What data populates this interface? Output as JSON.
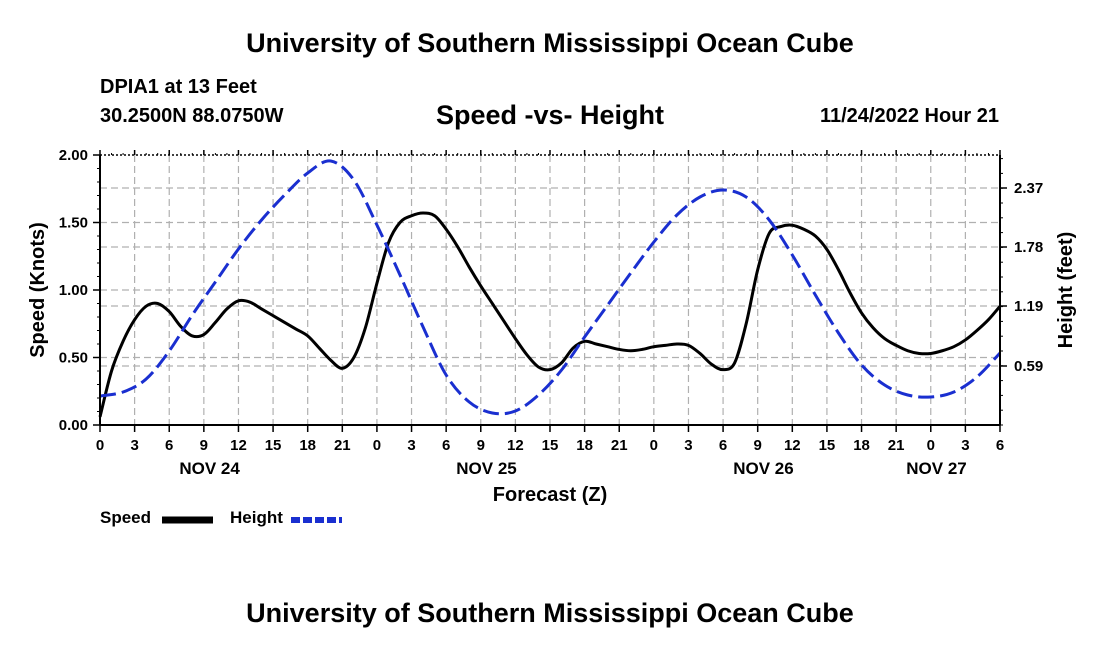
{
  "header": {
    "title": "University of Southern Mississippi Ocean Cube",
    "station": "DPIA1 at 13 Feet",
    "coords": "30.2500N  88.0750W",
    "subtitle": "Speed -vs- Height",
    "datetime": "11/24/2022 Hour 21"
  },
  "footer": {
    "title": "University of Southern Mississippi Ocean Cube"
  },
  "legend": {
    "speed_label": "Speed",
    "height_label": "Height"
  },
  "chart_data": {
    "type": "line",
    "title": "Speed -vs- Height",
    "xlabel": "Forecast (Z)",
    "ylabel": "Speed (Knots)",
    "y2label": "Height (feet)",
    "x_range_hours": [
      0,
      78
    ],
    "x_tick_step_hours": 3,
    "x_tick_labels": [
      "0",
      "3",
      "6",
      "9",
      "12",
      "15",
      "18",
      "21",
      "0",
      "3",
      "6",
      "9",
      "12",
      "15",
      "18",
      "21",
      "0",
      "3",
      "6",
      "9",
      "12",
      "15",
      "18",
      "21",
      "0",
      "3",
      "6"
    ],
    "date_labels": [
      {
        "label": "NOV 24",
        "hour": 9.5
      },
      {
        "label": "NOV 25",
        "hour": 33.5
      },
      {
        "label": "NOV 26",
        "hour": 57.5
      },
      {
        "label": "NOV 27",
        "hour": 72.5
      }
    ],
    "ylim": [
      0,
      2.0
    ],
    "y_ticks": [
      0.0,
      0.5,
      1.0,
      1.5,
      2.0
    ],
    "y_tick_labels": [
      "0.00",
      "0.50",
      "1.00",
      "1.50",
      "2.00"
    ],
    "y2lim": [
      0,
      2.7
    ],
    "y2_ticks": [
      0.59,
      1.19,
      1.78,
      2.37
    ],
    "y2_tick_labels": [
      "0.59",
      "1.19",
      "1.78",
      "2.37"
    ],
    "grid": true,
    "colors": {
      "speed": "#000000",
      "height": "#1a2fd0",
      "grid": "#b0b0b0"
    },
    "series": [
      {
        "name": "Speed",
        "axis": "left",
        "style": "solid",
        "x": [
          0,
          1,
          2,
          3,
          4,
          5,
          6,
          7,
          8,
          9,
          10,
          11,
          12,
          13,
          14,
          15,
          16,
          17,
          18,
          19,
          20,
          21,
          22,
          23,
          24,
          25,
          26,
          27,
          28,
          29,
          30,
          31,
          32,
          33,
          34,
          35,
          36,
          37,
          38,
          39,
          40,
          41,
          42,
          43,
          44,
          45,
          46,
          47,
          48,
          49,
          50,
          51,
          52,
          53,
          54,
          55,
          56,
          57,
          58,
          59,
          60,
          61,
          62,
          63,
          64,
          65,
          66,
          67,
          68,
          69,
          70,
          71,
          72,
          73,
          74,
          75,
          76,
          77,
          78
        ],
        "values": [
          0.06,
          0.4,
          0.62,
          0.78,
          0.88,
          0.9,
          0.84,
          0.73,
          0.66,
          0.67,
          0.76,
          0.86,
          0.92,
          0.91,
          0.86,
          0.81,
          0.76,
          0.71,
          0.66,
          0.57,
          0.48,
          0.42,
          0.5,
          0.72,
          1.05,
          1.35,
          1.5,
          1.55,
          1.57,
          1.55,
          1.45,
          1.32,
          1.17,
          1.03,
          0.9,
          0.77,
          0.64,
          0.52,
          0.43,
          0.41,
          0.46,
          0.57,
          0.62,
          0.6,
          0.58,
          0.56,
          0.55,
          0.56,
          0.58,
          0.59,
          0.6,
          0.59,
          0.53,
          0.45,
          0.41,
          0.46,
          0.75,
          1.15,
          1.42,
          1.47,
          1.48,
          1.45,
          1.4,
          1.3,
          1.15,
          0.98,
          0.83,
          0.72,
          0.64,
          0.59,
          0.55,
          0.53,
          0.53,
          0.55,
          0.58,
          0.63,
          0.7,
          0.78,
          0.88
        ]
      },
      {
        "name": "Height",
        "axis": "right",
        "style": "dashed",
        "x": [
          0,
          2,
          4,
          6,
          8,
          10,
          12,
          14,
          16,
          18,
          20,
          22,
          24,
          26,
          28,
          30,
          32,
          34,
          36,
          38,
          40,
          42,
          44,
          46,
          48,
          50,
          52,
          54,
          56,
          58,
          60,
          62,
          64,
          66,
          68,
          70,
          72,
          74,
          76,
          78
        ],
        "values": [
          0.29,
          0.33,
          0.46,
          0.74,
          1.1,
          1.43,
          1.76,
          2.05,
          2.3,
          2.52,
          2.64,
          2.45,
          2.0,
          1.5,
          0.98,
          0.5,
          0.23,
          0.12,
          0.14,
          0.3,
          0.55,
          0.88,
          1.2,
          1.52,
          1.83,
          2.1,
          2.28,
          2.35,
          2.28,
          2.05,
          1.7,
          1.3,
          0.92,
          0.6,
          0.4,
          0.3,
          0.28,
          0.33,
          0.48,
          0.72
        ]
      }
    ]
  }
}
